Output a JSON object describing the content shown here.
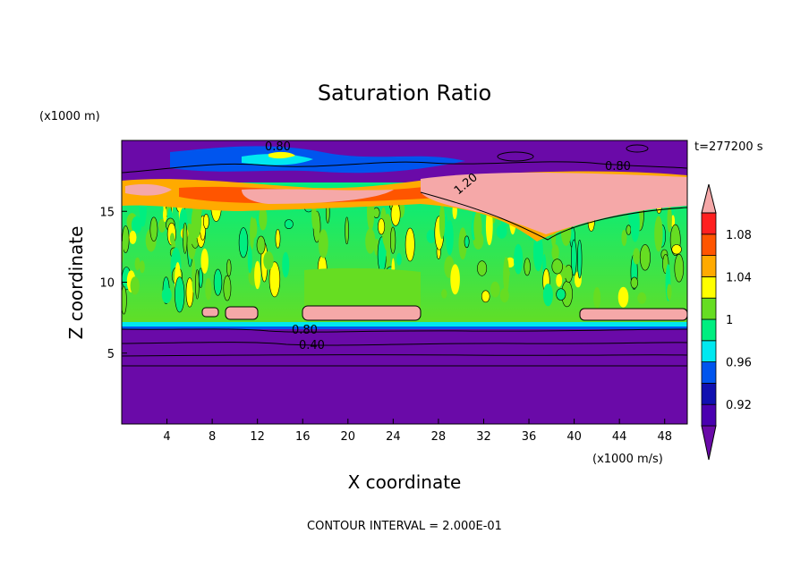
{
  "chart_data": {
    "type": "heatmap",
    "title": "Saturation Ratio",
    "xlabel": "X coordinate",
    "ylabel": "Z coordinate",
    "x_unit": "(x1000 m/s)",
    "y_unit": "(x1000 m)",
    "time_label": "t=277200 s",
    "footer": "CONTOUR INTERVAL = 2.000E-01",
    "xlim": [
      0,
      50
    ],
    "ylim": [
      0,
      20
    ],
    "x_ticks": [
      "4",
      "8",
      "12",
      "16",
      "20",
      "24",
      "28",
      "32",
      "36",
      "40",
      "44",
      "48"
    ],
    "y_ticks": [
      "5",
      "10",
      "15"
    ],
    "colorbar": {
      "ticks": [
        "0.92",
        "0.96",
        "1",
        "1.04",
        "1.08"
      ],
      "levels": [
        0.9,
        0.92,
        0.94,
        0.96,
        0.98,
        1.0,
        1.02,
        1.04,
        1.06,
        1.08,
        1.1
      ],
      "colors": [
        "#6a0aa8",
        "#4a00b0",
        "#1010b0",
        "#0055ee",
        "#00e8f0",
        "#00ee80",
        "#66dd22",
        "#ffff00",
        "#ffaa00",
        "#ff5500",
        "#ff2020",
        "#f5a8a8"
      ],
      "extend": "both"
    },
    "contour_labels": [
      "0.80",
      "0.80",
      "0.80",
      "0.40",
      "1.20"
    ],
    "contour_interval": 0.2
  }
}
